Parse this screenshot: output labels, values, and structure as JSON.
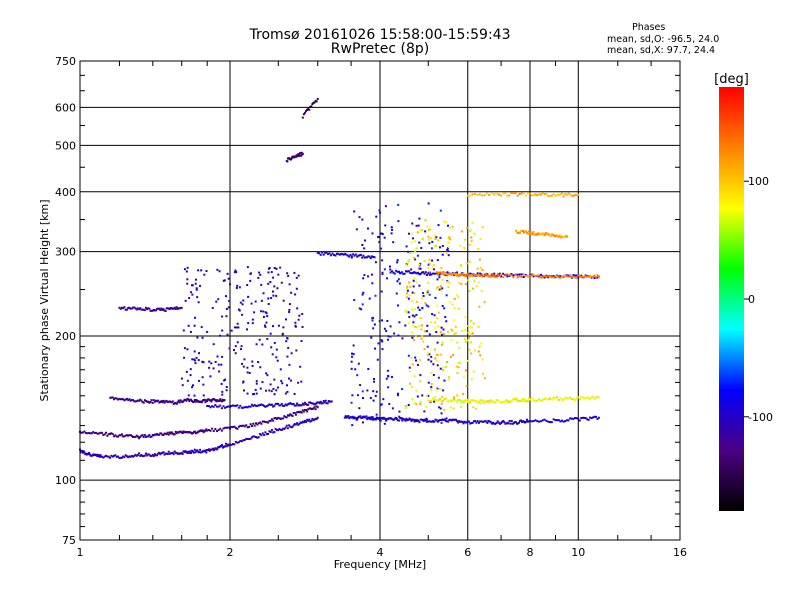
{
  "title": {
    "line1": "Tromsø 20161026 15:58:00-15:59:43",
    "line2": "RwPretec (8p)"
  },
  "phases_box": {
    "title": "Phases",
    "o_line": "mean, sd,O: -96.5, 24.0",
    "x_line": "mean, sd,X:  97.7, 24.4"
  },
  "chart_data": {
    "type": "scatter",
    "xlabel": "Frequency [MHz]",
    "ylabel": "Stationary phase Virtual Height [km]",
    "x_scale": "log",
    "y_scale": "log",
    "xlim": [
      1,
      16
    ],
    "ylim": [
      75,
      750
    ],
    "x_ticks": [
      1,
      2,
      4,
      6,
      8,
      10,
      16
    ],
    "y_ticks": [
      75,
      100,
      200,
      300,
      400,
      500,
      600,
      750
    ],
    "x_tick_labels": [
      "1",
      "2",
      "4",
      "6",
      "8",
      "10",
      "16"
    ],
    "y_tick_labels": [
      "75",
      "100",
      "200",
      "300",
      "400",
      "500",
      "600",
      "750"
    ],
    "grid": true,
    "colorbar": {
      "label": "[deg]",
      "range": [
        -180,
        180
      ],
      "ticks": [
        100,
        0,
        -100
      ],
      "tick_labels": [
        "100",
        "0",
        "-100"
      ],
      "colors": [
        "#000000",
        "#4b0082",
        "#0000ff",
        "#00ffff",
        "#00ff00",
        "#ffff00",
        "#ff8000",
        "#ff0000"
      ]
    },
    "series": [
      {
        "x": [
          1.0,
          1.05,
          1.1,
          1.2,
          1.3,
          1.4,
          1.5,
          1.6,
          1.7,
          1.8,
          1.9,
          2.0,
          2.2,
          2.4,
          2.6,
          2.8,
          3.0
        ],
        "y": [
          115,
          113,
          112,
          112,
          113,
          113,
          114,
          114,
          115,
          115,
          117,
          119,
          122,
          126,
          129,
          132,
          135
        ],
        "phase": -110
      },
      {
        "x": [
          1.0,
          1.1,
          1.2,
          1.3,
          1.4,
          1.5,
          1.6,
          1.7,
          1.8,
          2.0,
          2.2,
          2.4,
          2.6,
          2.8,
          3.0
        ],
        "y": [
          126,
          125,
          124,
          123,
          124,
          125,
          126,
          126,
          127,
          128,
          130,
          133,
          136,
          139,
          142
        ],
        "phase": -130
      },
      {
        "x": [
          1.15,
          1.25,
          1.35,
          1.45,
          1.55,
          1.65,
          1.75,
          1.85,
          1.95
        ],
        "y": [
          148,
          147,
          146,
          146,
          145,
          147,
          146,
          147,
          147
        ],
        "phase": -125
      },
      {
        "x": [
          1.8,
          2.0,
          2.2,
          2.4,
          2.6,
          2.8,
          3.0,
          3.2
        ],
        "y": [
          143,
          142,
          143,
          143,
          144,
          144,
          145,
          146
        ],
        "phase": -105
      },
      {
        "x": [
          3.4,
          3.6,
          3.8,
          4.0,
          4.2,
          4.5,
          4.8,
          5.2,
          5.6,
          6.0,
          6.5,
          7.0,
          7.5,
          8.0,
          9.0,
          10.0,
          11.0
        ],
        "y": [
          136,
          135,
          135,
          134,
          134,
          134,
          133,
          133,
          133,
          132,
          132,
          132,
          132,
          133,
          133,
          134,
          135
        ],
        "phase": -100
      },
      {
        "x": [
          5.0,
          5.5,
          6.0,
          6.5,
          7.0,
          7.5,
          8.0,
          9.0,
          10.0,
          11.0
        ],
        "y": [
          147,
          147,
          146,
          146,
          146,
          147,
          147,
          148,
          148,
          149
        ],
        "phase": 80
      },
      {
        "x": [
          1.2,
          1.3,
          1.4,
          1.5,
          1.6
        ],
        "y": [
          228,
          228,
          227,
          227,
          229
        ],
        "phase": -120
      },
      {
        "x": [
          3.0,
          3.3,
          3.6,
          3.9
        ],
        "y": [
          297,
          296,
          294,
          292
        ],
        "phase": -95
      },
      {
        "x": [
          4.2,
          4.6,
          5.0,
          5.5,
          6.0,
          6.5,
          7.0,
          8.0,
          9.0,
          10.0,
          11.0
        ],
        "y": [
          272,
          271,
          270,
          270,
          269,
          268,
          268,
          267,
          266,
          266,
          266
        ],
        "phase": -90
      },
      {
        "x": [
          5.2,
          5.6,
          6.0,
          6.5,
          7.0,
          8.0,
          9.0,
          10.0,
          11.0
        ],
        "y": [
          270,
          269,
          268,
          268,
          267,
          267,
          266,
          266,
          266
        ],
        "phase": 130
      },
      {
        "x": [
          6.0,
          7.0,
          8.0,
          9.0,
          10.0
        ],
        "y": [
          395,
          395,
          395,
          394,
          394
        ],
        "phase": 110
      },
      {
        "x": [
          7.5,
          8.0,
          8.5,
          9.0,
          9.5
        ],
        "y": [
          330,
          328,
          326,
          324,
          322
        ],
        "phase": 115
      },
      {
        "x": [
          2.6,
          2.7,
          2.8
        ],
        "y": [
          465,
          475,
          480
        ],
        "phase": -140
      },
      {
        "x": [
          2.8,
          3.0
        ],
        "y": [
          575,
          625
        ],
        "phase": -150
      }
    ],
    "scatter_regions": [
      {
        "x": [
          3.5,
          5.5
        ],
        "y": [
          130,
          380
        ],
        "phase": -95
      },
      {
        "x": [
          4.5,
          6.5
        ],
        "y": [
          140,
          350
        ],
        "phase": 90
      },
      {
        "x": [
          1.6,
          2.8
        ],
        "y": [
          150,
          280
        ],
        "phase": -110
      }
    ]
  }
}
